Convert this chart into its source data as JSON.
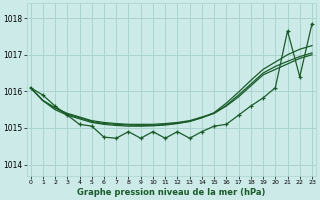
{
  "title": "Graphe pression niveau de la mer (hPa)",
  "bg_color": "#cceae8",
  "grid_color": "#aad4ce",
  "line_color": "#1a5c2a",
  "xlim": [
    -0.3,
    23.3
  ],
  "ylim": [
    1013.7,
    1018.4
  ],
  "yticks": [
    1014,
    1015,
    1016,
    1017,
    1018
  ],
  "xtick_labels": [
    "0",
    "1",
    "2",
    "3",
    "4",
    "5",
    "6",
    "7",
    "8",
    "9",
    "10",
    "11",
    "12",
    "13",
    "14",
    "15",
    "16",
    "17",
    "18",
    "19",
    "20",
    "21",
    "22",
    "23"
  ],
  "smooth1": [
    1016.1,
    1015.75,
    1015.55,
    1015.4,
    1015.3,
    1015.2,
    1015.15,
    1015.12,
    1015.1,
    1015.1,
    1015.1,
    1015.12,
    1015.15,
    1015.2,
    1015.3,
    1015.4,
    1015.6,
    1015.85,
    1016.15,
    1016.45,
    1016.6,
    1016.75,
    1016.9,
    1017.0
  ],
  "smooth2": [
    1016.1,
    1015.75,
    1015.55,
    1015.38,
    1015.28,
    1015.18,
    1015.12,
    1015.1,
    1015.08,
    1015.07,
    1015.07,
    1015.1,
    1015.13,
    1015.18,
    1015.28,
    1015.4,
    1015.62,
    1015.9,
    1016.2,
    1016.5,
    1016.68,
    1016.82,
    1016.95,
    1017.05
  ],
  "smooth3": [
    1016.1,
    1015.75,
    1015.5,
    1015.35,
    1015.25,
    1015.15,
    1015.1,
    1015.07,
    1015.05,
    1015.05,
    1015.06,
    1015.08,
    1015.12,
    1015.18,
    1015.28,
    1015.42,
    1015.68,
    1015.98,
    1016.3,
    1016.6,
    1016.8,
    1017.0,
    1017.15,
    1017.25
  ],
  "zigzag": [
    1016.1,
    1015.9,
    1015.6,
    1015.35,
    1015.1,
    1015.05,
    1014.75,
    1014.72,
    1014.9,
    1014.72,
    1014.9,
    1014.72,
    1014.9,
    1014.72,
    1014.9,
    1015.05,
    1015.1,
    1015.35,
    1015.6,
    1015.82,
    1016.1,
    1017.65,
    1016.4,
    1017.85
  ]
}
